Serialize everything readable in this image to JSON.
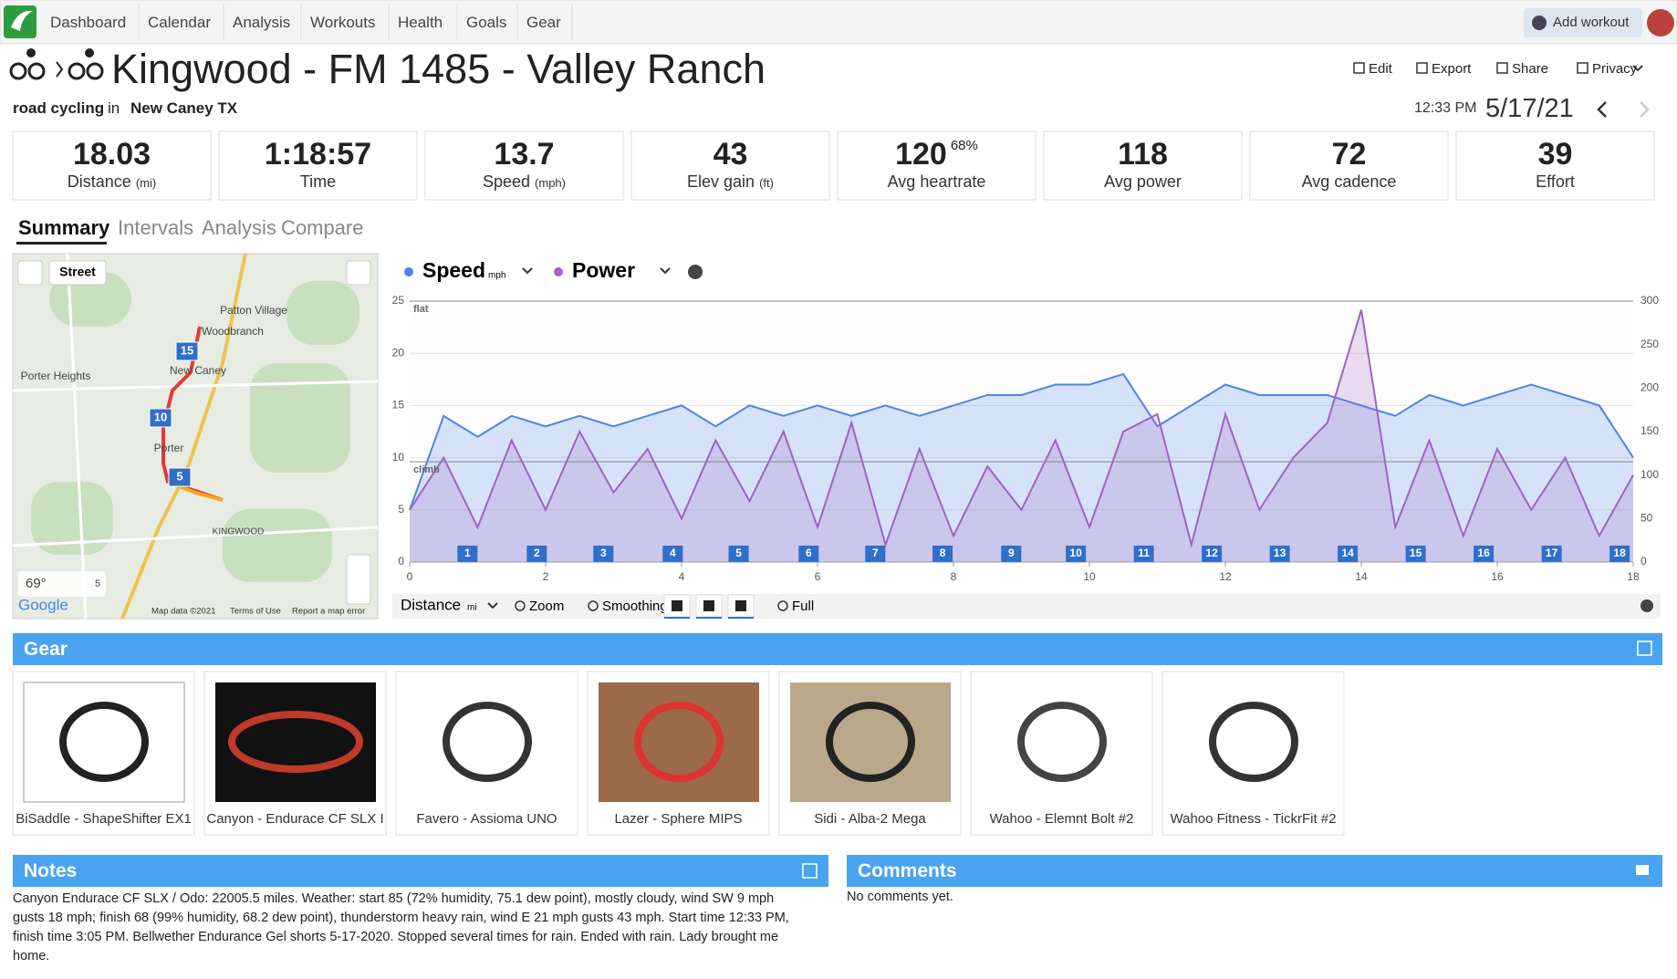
{
  "nav": {
    "items": [
      "Dashboard",
      "Calendar",
      "Analysis",
      "Workouts",
      "Health",
      "Goals",
      "Gear"
    ],
    "add_workout": "Add workout"
  },
  "header": {
    "title": "Kingwood - FM 1485 - Valley Ranch",
    "sport": "road cycling",
    "in": "in",
    "location": "New Caney TX",
    "time": "12:33 PM",
    "date": "5/17/21",
    "actions": [
      "Edit",
      "Export",
      "Share",
      "Privacy"
    ]
  },
  "stats": [
    {
      "value": 18.03,
      "label": "Distance",
      "unit": "(mi)"
    },
    {
      "value": "1:18:57",
      "label": "Time"
    },
    {
      "value": 13.7,
      "label": "Speed",
      "unit": "(mph)"
    },
    {
      "value": 43,
      "label": "Elev gain",
      "unit": "(ft)"
    },
    {
      "value": 120,
      "sup": "68%",
      "label": "Avg heartrate"
    },
    {
      "value": 118,
      "label": "Avg power"
    },
    {
      "value": 72,
      "label": "Avg cadence"
    },
    {
      "value": 39,
      "label": "Effort"
    }
  ],
  "tabs": [
    "Summary",
    "Intervals",
    "Analysis",
    "Compare"
  ],
  "map": {
    "layer": "Street",
    "places": [
      "Patton Village",
      "Woodbranch",
      "Porter Heights",
      "New Caney",
      "Porter",
      "KINGWOOD"
    ],
    "markers": [
      "15",
      "10",
      "5"
    ],
    "temperature": "69°",
    "wind": "5",
    "brand": "Google",
    "footer": [
      "Map data ©2021",
      "Terms of Use",
      "Report a map error"
    ]
  },
  "chart_data": {
    "type": "line",
    "x": [
      0,
      0.5,
      1,
      1.5,
      2,
      2.5,
      3,
      3.5,
      4,
      4.5,
      5,
      5.5,
      6,
      6.5,
      7,
      7.5,
      8,
      8.5,
      9,
      9.5,
      10,
      10.5,
      11,
      11.5,
      12,
      12.5,
      13,
      13.5,
      14,
      14.5,
      15,
      15.5,
      16,
      16.5,
      17,
      17.5,
      18
    ],
    "series": [
      {
        "name": "Speed",
        "unit": "mph",
        "color": "#4a86e8",
        "values": [
          5,
          14,
          12,
          14,
          13,
          14,
          13,
          14,
          15,
          13,
          15,
          14,
          15,
          14,
          15,
          14,
          15,
          16,
          16,
          17,
          17,
          18,
          13,
          15,
          17,
          16,
          16,
          16,
          15,
          14,
          16,
          15,
          16,
          17,
          16,
          15,
          10
        ]
      },
      {
        "name": "Power",
        "color": "#a262c6",
        "axis": "y2",
        "values": [
          60,
          120,
          40,
          140,
          60,
          150,
          80,
          130,
          50,
          140,
          70,
          150,
          40,
          160,
          20,
          130,
          30,
          110,
          60,
          140,
          40,
          150,
          170,
          20,
          170,
          60,
          120,
          160,
          290,
          40,
          140,
          30,
          130,
          60,
          120,
          30,
          100
        ]
      }
    ],
    "xlim": [
      0,
      18
    ],
    "xticks": [
      0,
      2,
      4,
      6,
      8,
      10,
      12,
      14,
      16,
      18
    ],
    "ylim": [
      0,
      25
    ],
    "yticks": [
      0,
      5,
      10,
      15,
      20,
      25
    ],
    "y2lim": [
      0,
      300
    ],
    "y2ticks": [
      0,
      50,
      100,
      150,
      200,
      250,
      300
    ],
    "zones": [
      {
        "label": "flat",
        "y": 25
      },
      {
        "label": "climb",
        "y": 9.6
      }
    ],
    "laps": {
      "labels": [
        1,
        2,
        3,
        4,
        5,
        6,
        7,
        8,
        9,
        10,
        11,
        12,
        13,
        14,
        15,
        16,
        17,
        18
      ],
      "x": [
        0.85,
        1.87,
        2.85,
        3.87,
        4.84,
        5.87,
        6.85,
        7.84,
        8.85,
        9.8,
        10.8,
        11.8,
        12.8,
        13.8,
        14.8,
        15.8,
        16.8,
        17.8
      ]
    },
    "x_label": "Distance",
    "x_unit": "mi",
    "controls": [
      "Zoom",
      "Smoothing",
      "Full"
    ]
  },
  "gear": {
    "title": "Gear",
    "items": [
      "BiSaddle - ShapeShifter EX1",
      "Canyon - Endurace CF SLX I",
      "Favero - Assioma UNO",
      "Lazer - Sphere MIPS",
      "Sidi - Alba-2 Mega",
      "Wahoo - Elemnt Bolt #2",
      "Wahoo Fitness - TickrFit #2"
    ]
  },
  "notes": {
    "title": "Notes",
    "text": "Canyon Endurace CF SLX / Odo: 22005.5 miles. Weather: start 85 (72% humidity, 75.1 dew point), mostly cloudy, wind SW 9 mph gusts 18 mph; finish 68 (99% humidity, 68.2 dew point), thunderstorm heavy rain, wind E 21 mph gusts 43 mph. Start time 12:33 PM, finish time 3:05 PM. Bellwether Endurance Gel shorts 5-17-2020. Stopped several times for rain. Ended with rain. Lady brought me home."
  },
  "comments": {
    "title": "Comments",
    "text": "No comments yet."
  }
}
